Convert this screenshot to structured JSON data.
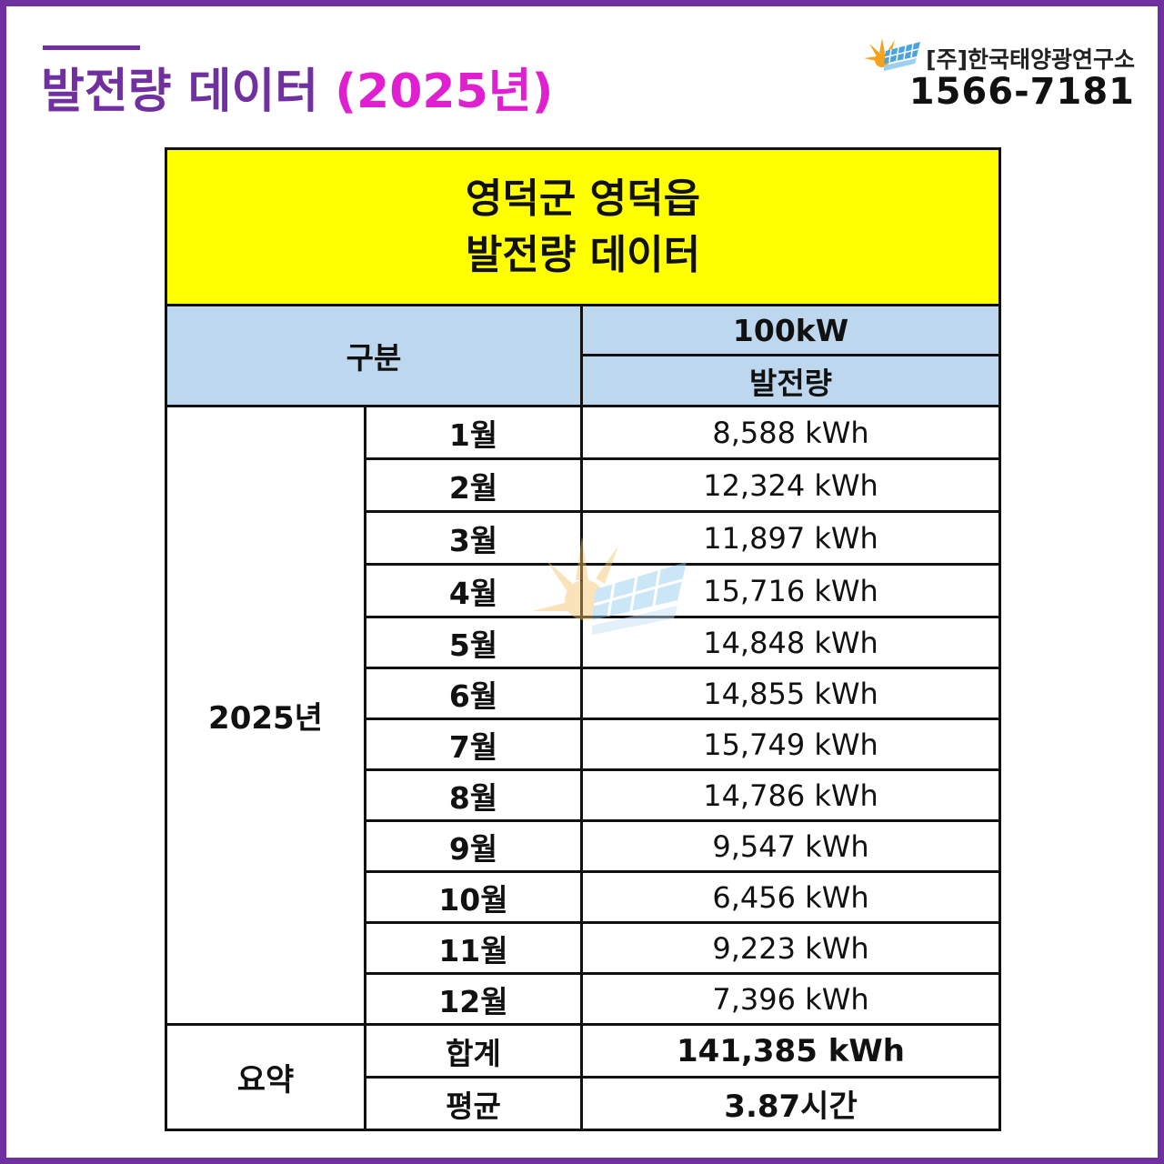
{
  "header": {
    "title_main": "발전량 데이터",
    "title_year": "(2025년)",
    "company": "[주]한국태양광연구소",
    "phone": "1566-7181"
  },
  "table": {
    "title_line1": "영덕군 영덕읍",
    "title_line2": "발전량 데이터",
    "col_category": "구분",
    "col_capacity": "100kW",
    "col_generation": "발전량",
    "year_label": "2025년",
    "rows": [
      {
        "month": "1월",
        "value": "8,588 kWh"
      },
      {
        "month": "2월",
        "value": "12,324 kWh"
      },
      {
        "month": "3월",
        "value": "11,897 kWh"
      },
      {
        "month": "4월",
        "value": "15,716 kWh"
      },
      {
        "month": "5월",
        "value": "14,848 kWh"
      },
      {
        "month": "6월",
        "value": "14,855 kWh"
      },
      {
        "month": "7월",
        "value": "15,749 kWh"
      },
      {
        "month": "8월",
        "value": "14,786 kWh"
      },
      {
        "month": "9월",
        "value": "9,547 kWh"
      },
      {
        "month": "10월",
        "value": "6,456 kWh"
      },
      {
        "month": "11월",
        "value": "9,223 kWh"
      },
      {
        "month": "12월",
        "value": "7,396 kWh"
      }
    ],
    "summary_label": "요약",
    "sum_label": "합계",
    "sum_value": "141,385 kWh",
    "avg_label": "평균",
    "avg_value": "3.87시간"
  },
  "colors": {
    "frame": "#7030a0",
    "title_year": "#e020d0",
    "table_title_bg": "#ffff00",
    "table_header_bg": "#bdd7ee",
    "avg_value": "#e00000"
  },
  "icons": {
    "logo": "sun-solar-panel-icon",
    "watermark": "sun-solar-panel-watermark-icon"
  }
}
